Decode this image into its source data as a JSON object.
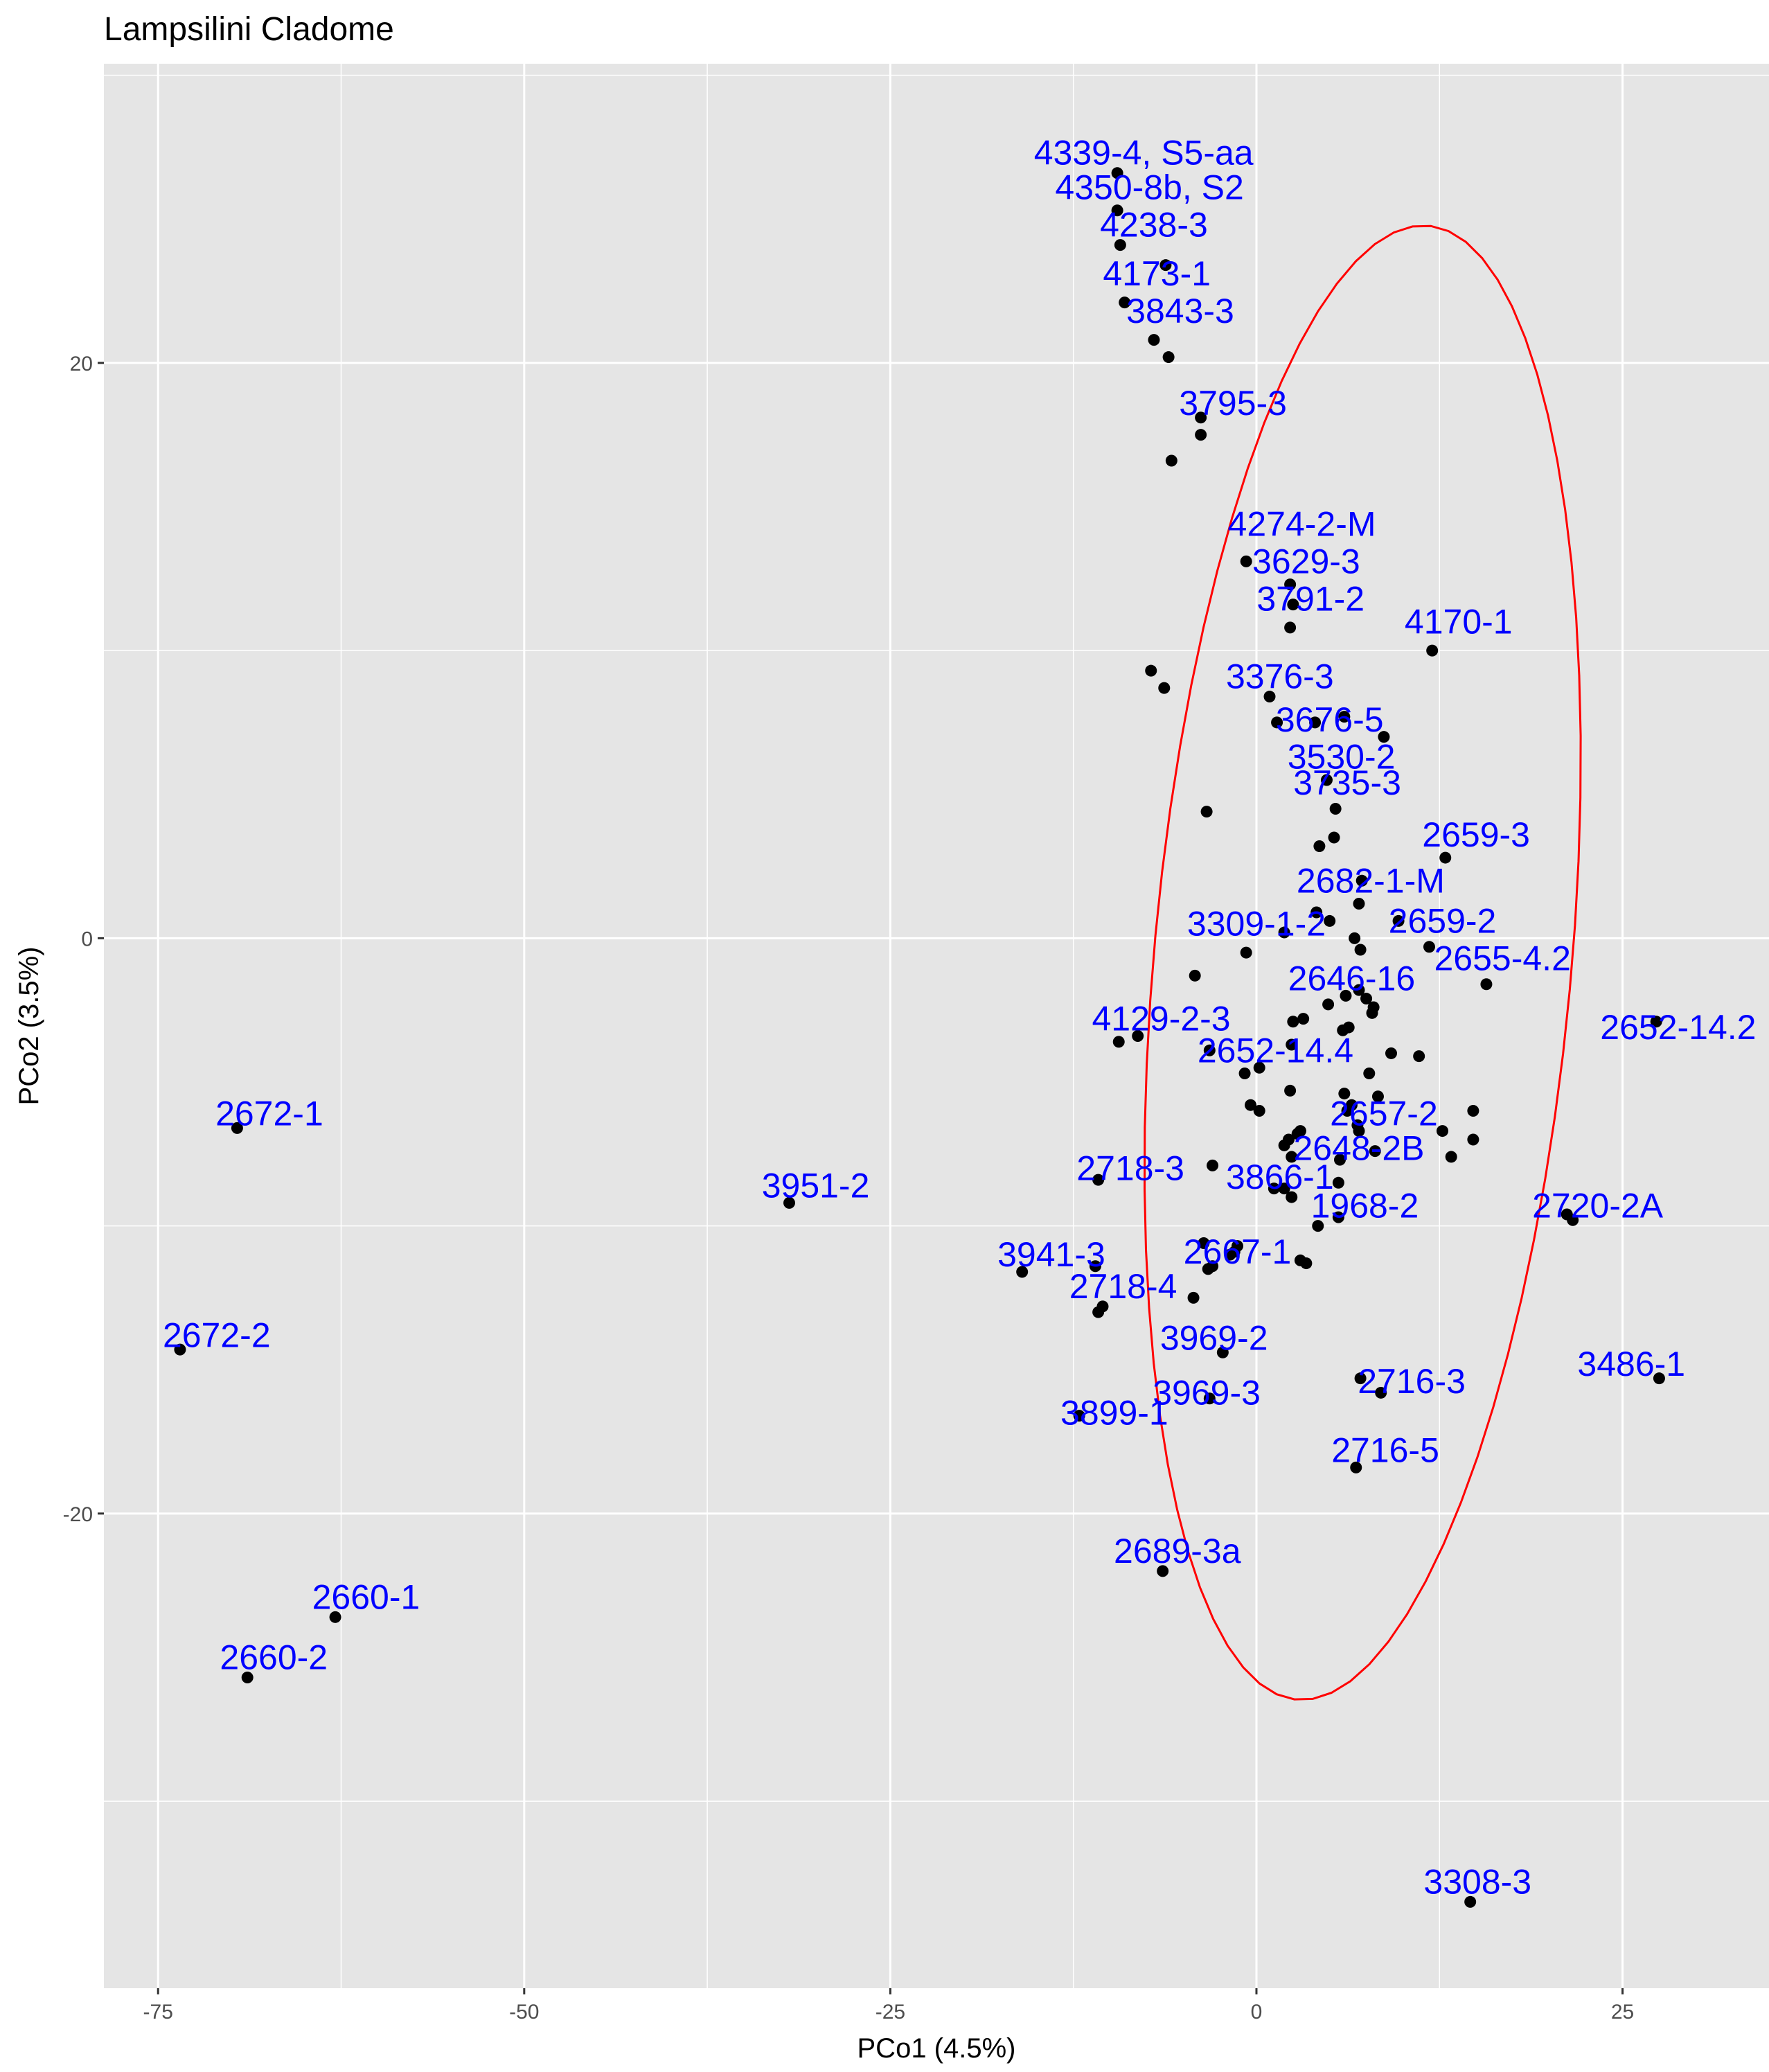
{
  "chart_data": {
    "type": "scatter",
    "title": "Lampsilini Cladome",
    "xlabel": "PCo1 (4.5%)",
    "ylabel": "PCo2 (3.5%)",
    "xlim": [
      -78.7,
      35.0
    ],
    "ylim": [
      -36.5,
      30.4
    ],
    "x_ticks": [
      -75,
      -50,
      -25,
      0,
      25
    ],
    "x_tick_labels": [
      "-75",
      "-50",
      "-25",
      "0",
      "25"
    ],
    "y_ticks": [
      -20,
      0,
      20
    ],
    "y_tick_labels": [
      "-20",
      "0",
      "20"
    ],
    "grid": true,
    "colors": {
      "panel": "#e5e5e5",
      "grid": "#ffffff",
      "point": "#000000",
      "label": "#0000ff",
      "ellipse": "#ff0000"
    },
    "points": [
      {
        "x": -9.5,
        "y": 26.6
      },
      {
        "x": -9.5,
        "y": 25.3
      },
      {
        "x": -9.3,
        "y": 24.1
      },
      {
        "x": -6.2,
        "y": 23.4
      },
      {
        "x": -9.0,
        "y": 22.1
      },
      {
        "x": -7.0,
        "y": 20.8
      },
      {
        "x": -6.0,
        "y": 20.2
      },
      {
        "x": -3.8,
        "y": 18.1
      },
      {
        "x": -3.8,
        "y": 17.5
      },
      {
        "x": -5.8,
        "y": 16.6
      },
      {
        "x": -0.7,
        "y": 13.1
      },
      {
        "x": 2.3,
        "y": 12.3
      },
      {
        "x": 2.5,
        "y": 11.6
      },
      {
        "x": 2.3,
        "y": 10.8
      },
      {
        "x": 12.0,
        "y": 10.0
      },
      {
        "x": -7.2,
        "y": 9.3
      },
      {
        "x": -6.3,
        "y": 8.7
      },
      {
        "x": 0.9,
        "y": 8.4
      },
      {
        "x": 1.4,
        "y": 7.5
      },
      {
        "x": 4.0,
        "y": 7.5
      },
      {
        "x": 6.0,
        "y": 7.7
      },
      {
        "x": 8.7,
        "y": 7.0
      },
      {
        "x": 4.8,
        "y": 5.5
      },
      {
        "x": 5.4,
        "y": 4.5
      },
      {
        "x": -3.4,
        "y": 4.4
      },
      {
        "x": 5.3,
        "y": 3.5
      },
      {
        "x": 4.3,
        "y": 3.2
      },
      {
        "x": 12.9,
        "y": 2.8
      },
      {
        "x": 7.2,
        "y": 2.0
      },
      {
        "x": 7.0,
        "y": 1.2
      },
      {
        "x": 4.1,
        "y": 0.9
      },
      {
        "x": 5.0,
        "y": 0.6
      },
      {
        "x": 9.7,
        "y": 0.6
      },
      {
        "x": 1.9,
        "y": 0.2
      },
      {
        "x": 6.7,
        "y": 0.0
      },
      {
        "x": 11.8,
        "y": -0.3
      },
      {
        "x": 7.1,
        "y": -0.4
      },
      {
        "x": -0.7,
        "y": -0.5
      },
      {
        "x": -4.2,
        "y": -1.3
      },
      {
        "x": 15.7,
        "y": -1.6
      },
      {
        "x": 7.0,
        "y": -1.8
      },
      {
        "x": 7.5,
        "y": -2.1
      },
      {
        "x": 6.1,
        "y": -2.0
      },
      {
        "x": 4.9,
        "y": -2.3
      },
      {
        "x": 8.0,
        "y": -2.4
      },
      {
        "x": 7.9,
        "y": -2.6
      },
      {
        "x": 3.2,
        "y": -2.8
      },
      {
        "x": 2.5,
        "y": -2.9
      },
      {
        "x": 6.3,
        "y": -3.1
      },
      {
        "x": 5.9,
        "y": -3.2
      },
      {
        "x": 27.3,
        "y": -2.9
      },
      {
        "x": -8.1,
        "y": -3.4
      },
      {
        "x": -9.4,
        "y": -3.6
      },
      {
        "x": 2.4,
        "y": -3.7
      },
      {
        "x": -3.2,
        "y": -3.9
      },
      {
        "x": 9.2,
        "y": -4.0
      },
      {
        "x": 11.1,
        "y": -4.1
      },
      {
        "x": 0.2,
        "y": -4.5
      },
      {
        "x": -0.8,
        "y": -4.7
      },
      {
        "x": 7.7,
        "y": -4.7
      },
      {
        "x": 2.3,
        "y": -5.3
      },
      {
        "x": 6.0,
        "y": -5.4
      },
      {
        "x": 8.3,
        "y": -5.5
      },
      {
        "x": 6.5,
        "y": -5.8
      },
      {
        "x": 6.2,
        "y": -6.0
      },
      {
        "x": 14.8,
        "y": -6.0
      },
      {
        "x": -0.4,
        "y": -5.8
      },
      {
        "x": 0.2,
        "y": -6.0
      },
      {
        "x": 6.9,
        "y": -6.5
      },
      {
        "x": 7.0,
        "y": -6.7
      },
      {
        "x": 12.7,
        "y": -6.7
      },
      {
        "x": 3.0,
        "y": -6.7
      },
      {
        "x": 2.8,
        "y": -6.8
      },
      {
        "x": 2.2,
        "y": -7.0
      },
      {
        "x": 1.9,
        "y": -7.2
      },
      {
        "x": 14.8,
        "y": -7.0
      },
      {
        "x": 8.1,
        "y": -7.4
      },
      {
        "x": 2.4,
        "y": -7.6
      },
      {
        "x": 13.3,
        "y": -7.6
      },
      {
        "x": 5.7,
        "y": -7.7
      },
      {
        "x": -3.0,
        "y": -7.9
      },
      {
        "x": -10.8,
        "y": -8.4
      },
      {
        "x": 5.6,
        "y": -8.5
      },
      {
        "x": 1.2,
        "y": -8.7
      },
      {
        "x": 1.9,
        "y": -8.7
      },
      {
        "x": 2.4,
        "y": -9.0
      },
      {
        "x": 21.2,
        "y": -9.6
      },
      {
        "x": 21.6,
        "y": -9.8
      },
      {
        "x": 5.6,
        "y": -9.7
      },
      {
        "x": 4.2,
        "y": -10.0
      },
      {
        "x": -3.6,
        "y": -10.6
      },
      {
        "x": -1.3,
        "y": -10.7
      },
      {
        "x": -1.5,
        "y": -10.9
      },
      {
        "x": -1.8,
        "y": -11.0
      },
      {
        "x": 3.0,
        "y": -11.2
      },
      {
        "x": 3.4,
        "y": -11.3
      },
      {
        "x": -3.0,
        "y": -11.4
      },
      {
        "x": -3.3,
        "y": -11.5
      },
      {
        "x": -11.0,
        "y": -11.4
      },
      {
        "x": -16.0,
        "y": -11.6
      },
      {
        "x": -4.3,
        "y": -12.5
      },
      {
        "x": -10.5,
        "y": -12.8
      },
      {
        "x": -10.8,
        "y": -13.0
      },
      {
        "x": -2.3,
        "y": -14.4
      },
      {
        "x": 7.1,
        "y": -15.3
      },
      {
        "x": 8.5,
        "y": -15.8
      },
      {
        "x": -3.2,
        "y": -16.0
      },
      {
        "x": -12.1,
        "y": -16.6
      },
      {
        "x": 6.8,
        "y": -18.4
      },
      {
        "x": -6.4,
        "y": -22.0
      },
      {
        "x": -69.6,
        "y": -6.6
      },
      {
        "x": -31.9,
        "y": -9.2
      },
      {
        "x": -73.5,
        "y": -14.3
      },
      {
        "x": -62.9,
        "y": -23.6
      },
      {
        "x": -68.9,
        "y": -25.7
      },
      {
        "x": 27.5,
        "y": -15.3
      },
      {
        "x": 14.6,
        "y": -33.5
      }
    ],
    "labels": [
      {
        "text": "4339-4, S5-aa",
        "x": -7.7,
        "y": 27.3
      },
      {
        "text": "4350-8b, S2",
        "x": -7.3,
        "y": 26.1
      },
      {
        "text": "4238-3",
        "x": -7.0,
        "y": 24.8
      },
      {
        "text": "4173-1",
        "x": -6.8,
        "y": 23.1
      },
      {
        "text": "3843-3",
        "x": -5.2,
        "y": 21.8
      },
      {
        "text": "3795-3",
        "x": -1.6,
        "y": 18.6
      },
      {
        "text": "4274-2-M",
        "x": 3.1,
        "y": 14.4
      },
      {
        "text": "3629-3",
        "x": 3.4,
        "y": 13.1
      },
      {
        "text": "3791-2",
        "x": 3.7,
        "y": 11.8
      },
      {
        "text": "4170-1",
        "x": 13.8,
        "y": 11.0
      },
      {
        "text": "3376-3",
        "x": 1.6,
        "y": 9.1
      },
      {
        "text": "3676-5",
        "x": 5.0,
        "y": 7.6
      },
      {
        "text": "3530-2",
        "x": 5.8,
        "y": 6.3
      },
      {
        "text": "3735-3",
        "x": 6.2,
        "y": 5.4
      },
      {
        "text": "2659-3",
        "x": 15.0,
        "y": 3.6
      },
      {
        "text": "2682-1-M",
        "x": 7.8,
        "y": 2.0
      },
      {
        "text": "3309-1-2",
        "x": 0.0,
        "y": 0.5
      },
      {
        "text": "2659-2",
        "x": 12.7,
        "y": 0.6
      },
      {
        "text": "2655-4.2",
        "x": 16.8,
        "y": -0.7
      },
      {
        "text": "2646-16",
        "x": 6.5,
        "y": -1.4
      },
      {
        "text": "2652-14.2",
        "x": 28.8,
        "y": -3.1
      },
      {
        "text": "4129-2-3",
        "x": -6.5,
        "y": -2.8
      },
      {
        "text": "2652-14.4",
        "x": 1.3,
        "y": -3.9
      },
      {
        "text": "2657-2",
        "x": 8.7,
        "y": -6.1
      },
      {
        "text": "2648-2B",
        "x": 7.0,
        "y": -7.3
      },
      {
        "text": "2672-1",
        "x": -67.4,
        "y": -6.1
      },
      {
        "text": "2718-3",
        "x": -8.6,
        "y": -8.0
      },
      {
        "text": "3866-1",
        "x": 1.6,
        "y": -8.3
      },
      {
        "text": "3951-2",
        "x": -30.1,
        "y": -8.6
      },
      {
        "text": "1968-2",
        "x": 7.4,
        "y": -9.3
      },
      {
        "text": "2720-2A",
        "x": 23.3,
        "y": -9.3
      },
      {
        "text": "3941-3",
        "x": -14.0,
        "y": -11.0
      },
      {
        "text": "2667-1",
        "x": -1.3,
        "y": -10.9
      },
      {
        "text": "2718-4",
        "x": -9.1,
        "y": -12.1
      },
      {
        "text": "2672-2",
        "x": -71.0,
        "y": -13.8
      },
      {
        "text": "3969-2",
        "x": -2.9,
        "y": -13.9
      },
      {
        "text": "3486-1",
        "x": 25.6,
        "y": -14.8
      },
      {
        "text": "2716-3",
        "x": 10.6,
        "y": -15.4
      },
      {
        "text": "3969-3",
        "x": -3.4,
        "y": -15.8
      },
      {
        "text": "3899-1",
        "x": -9.7,
        "y": -16.5
      },
      {
        "text": "2716-5",
        "x": 8.8,
        "y": -17.8
      },
      {
        "text": "2689-3a",
        "x": -5.4,
        "y": -21.3
      },
      {
        "text": "2660-1",
        "x": -60.8,
        "y": -22.9
      },
      {
        "text": "2660-2",
        "x": -67.1,
        "y": -25.0
      },
      {
        "text": "3308-3",
        "x": 15.1,
        "y": -32.8
      }
    ],
    "ellipse": {
      "center": [
        7.25,
        -0.85
      ],
      "angle_deg": -13.0,
      "a": 26.1,
      "b": 14.05
    }
  }
}
